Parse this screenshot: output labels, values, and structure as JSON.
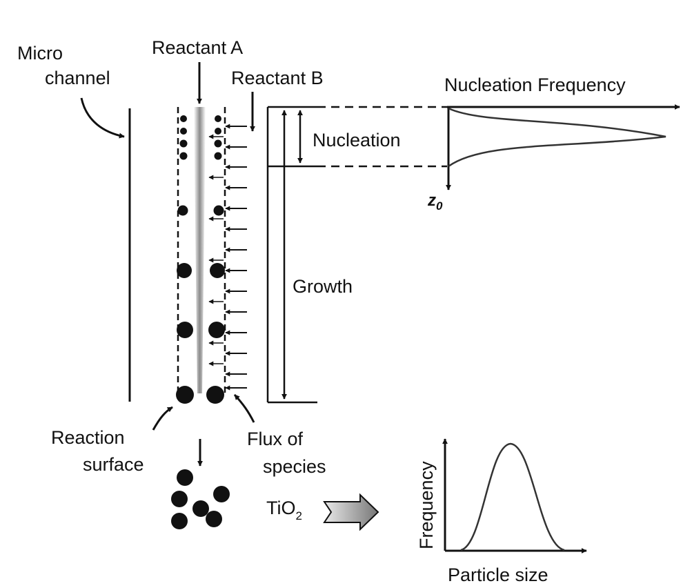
{
  "labels": {
    "micro_channel_line1": "Micro",
    "micro_channel_line2": "channel",
    "reactant_a": "Reactant A",
    "reactant_b": "Reactant B",
    "nucleation_frequency": "Nucleation Frequency",
    "nucleation": "Nucleation",
    "z0_main": "z",
    "z0_sub": "0",
    "growth": "Growth",
    "reaction_surface_line1": "Reaction",
    "reaction_surface_line2": "surface",
    "flux_line1": "Flux of",
    "flux_line2": "species",
    "tio2_main": "TiO",
    "tio2_sub": "2",
    "frequency_axis": "Frequency",
    "particle_size_axis": "Particle size"
  },
  "colors": {
    "ink": "#111111",
    "gradient_dark": "#8a8a8a",
    "gradient_light": "#ffffff"
  }
}
